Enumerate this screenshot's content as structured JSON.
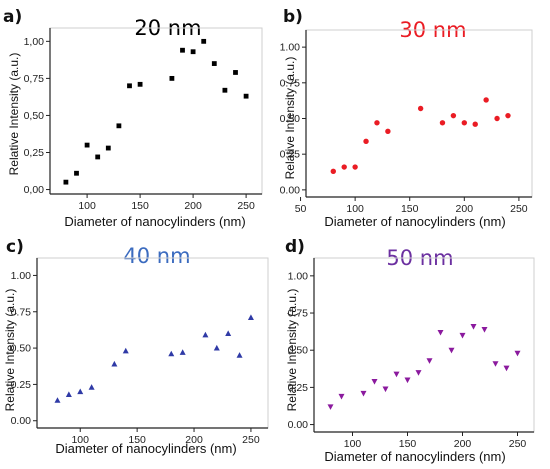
{
  "chart_data": [
    {
      "type": "scatter",
      "panel_label": "a)",
      "title": "20 nm",
      "title_color": "#000000",
      "marker": "square",
      "marker_color": "#000000",
      "xlabel": "Diameter of nanocylinders (nm)",
      "ylabel": "Relative Intensity (a.u.)",
      "xlim": [
        65,
        265
      ],
      "ylim": [
        -0.03,
        1.09
      ],
      "xticks": [
        100,
        150,
        200,
        250
      ],
      "xtick_labels": [
        "100",
        "150",
        "200",
        "250"
      ],
      "yticks": [
        0,
        0.25,
        0.5,
        0.75,
        1.0
      ],
      "ytick_labels": [
        "0,00",
        "0,25",
        "0,50",
        "0,75",
        "1,00"
      ],
      "points": [
        {
          "x": 80,
          "y": 0.05
        },
        {
          "x": 90,
          "y": 0.11
        },
        {
          "x": 100,
          "y": 0.3
        },
        {
          "x": 110,
          "y": 0.22
        },
        {
          "x": 120,
          "y": 0.28
        },
        {
          "x": 130,
          "y": 0.43
        },
        {
          "x": 140,
          "y": 0.7
        },
        {
          "x": 150,
          "y": 0.71
        },
        {
          "x": 180,
          "y": 0.75
        },
        {
          "x": 190,
          "y": 0.94
        },
        {
          "x": 200,
          "y": 0.93
        },
        {
          "x": 210,
          "y": 1.0
        },
        {
          "x": 220,
          "y": 0.85
        },
        {
          "x": 230,
          "y": 0.67
        },
        {
          "x": 240,
          "y": 0.79
        },
        {
          "x": 250,
          "y": 0.63
        }
      ]
    },
    {
      "type": "scatter",
      "panel_label": "b)",
      "title": "30 nm",
      "title_color": "#ea1c24",
      "marker": "circle",
      "marker_color": "#ea1c24",
      "xlabel": "Diameter of nanocylinders (nm)",
      "ylabel": "Relative Intensity (a.u.)",
      "xlim": [
        55,
        262
      ],
      "ylim": [
        -0.05,
        1.12
      ],
      "xticks": [
        50,
        100,
        150,
        200,
        250
      ],
      "xtick_labels": [
        "50",
        "100",
        "150",
        "200",
        "250"
      ],
      "yticks": [
        0,
        0.25,
        0.5,
        0.75,
        1.0
      ],
      "ytick_labels": [
        "0.00",
        "0.25",
        "0.50",
        "0.75",
        "1.00"
      ],
      "points": [
        {
          "x": 80,
          "y": 0.13
        },
        {
          "x": 90,
          "y": 0.16
        },
        {
          "x": 100,
          "y": 0.16
        },
        {
          "x": 110,
          "y": 0.34
        },
        {
          "x": 120,
          "y": 0.47
        },
        {
          "x": 130,
          "y": 0.41
        },
        {
          "x": 160,
          "y": 0.57
        },
        {
          "x": 180,
          "y": 0.47
        },
        {
          "x": 190,
          "y": 0.52
        },
        {
          "x": 200,
          "y": 0.47
        },
        {
          "x": 210,
          "y": 0.46
        },
        {
          "x": 220,
          "y": 0.63
        },
        {
          "x": 230,
          "y": 0.5
        },
        {
          "x": 240,
          "y": 0.52
        }
      ]
    },
    {
      "type": "scatter",
      "panel_label": "c)",
      "title": "40 nm",
      "title_color": "#3b6bbf",
      "marker": "triangle-up",
      "marker_color": "#2f3aa6",
      "xlabel": "Diameter of nanocylinders (nm)",
      "ylabel": "Relative Intensity (a.u.)",
      "xlim": [
        62,
        265
      ],
      "ylim": [
        -0.05,
        1.12
      ],
      "xticks": [
        100,
        150,
        200,
        250
      ],
      "xtick_labels": [
        "100",
        "150",
        "200",
        "250"
      ],
      "yticks": [
        0,
        0.25,
        0.5,
        0.75,
        1.0
      ],
      "ytick_labels": [
        "0.00",
        "0.25",
        "0.50",
        "0.75",
        "1.00"
      ],
      "points": [
        {
          "x": 80,
          "y": 0.14
        },
        {
          "x": 90,
          "y": 0.18
        },
        {
          "x": 100,
          "y": 0.2
        },
        {
          "x": 110,
          "y": 0.23
        },
        {
          "x": 130,
          "y": 0.39
        },
        {
          "x": 140,
          "y": 0.48
        },
        {
          "x": 180,
          "y": 0.46
        },
        {
          "x": 190,
          "y": 0.47
        },
        {
          "x": 210,
          "y": 0.59
        },
        {
          "x": 220,
          "y": 0.5
        },
        {
          "x": 230,
          "y": 0.6
        },
        {
          "x": 240,
          "y": 0.45
        },
        {
          "x": 250,
          "y": 0.71
        }
      ]
    },
    {
      "type": "scatter",
      "panel_label": "d)",
      "title": "50 nm",
      "title_color": "#6b2fa0",
      "marker": "triangle-down",
      "marker_color": "#8b1a9e",
      "xlabel": "Diameter of nanocylinders (nm)",
      "ylabel": "Relative Intensity (a.u.)",
      "xlim": [
        65,
        265
      ],
      "ylim": [
        -0.05,
        1.12
      ],
      "xticks": [
        100,
        150,
        200,
        250
      ],
      "xtick_labels": [
        "100",
        "150",
        "200",
        "250"
      ],
      "yticks": [
        0,
        0.25,
        0.5,
        0.75,
        1.0
      ],
      "ytick_labels": [
        "0.00",
        "0.25",
        "0.50",
        "0.75",
        "1.00"
      ],
      "points": [
        {
          "x": 80,
          "y": 0.12
        },
        {
          "x": 90,
          "y": 0.19
        },
        {
          "x": 110,
          "y": 0.21
        },
        {
          "x": 120,
          "y": 0.29
        },
        {
          "x": 130,
          "y": 0.24
        },
        {
          "x": 140,
          "y": 0.34
        },
        {
          "x": 150,
          "y": 0.3
        },
        {
          "x": 160,
          "y": 0.35
        },
        {
          "x": 170,
          "y": 0.43
        },
        {
          "x": 180,
          "y": 0.62
        },
        {
          "x": 190,
          "y": 0.5
        },
        {
          "x": 200,
          "y": 0.6
        },
        {
          "x": 210,
          "y": 0.66
        },
        {
          "x": 220,
          "y": 0.64
        },
        {
          "x": 230,
          "y": 0.41
        },
        {
          "x": 240,
          "y": 0.38
        },
        {
          "x": 250,
          "y": 0.48
        }
      ]
    }
  ]
}
